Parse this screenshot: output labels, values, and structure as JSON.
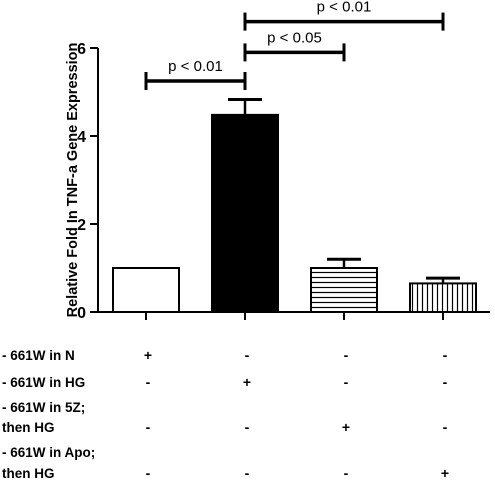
{
  "chart_data": {
    "type": "bar",
    "title": "",
    "xlabel": "",
    "ylabel": "Relative Fold In TNF-a Gene Expression",
    "ylim": [
      0,
      6
    ],
    "yticks": [
      0,
      2,
      4,
      6
    ],
    "categories": [
      "N",
      "HG",
      "5Z then HG",
      "Apo then HG"
    ],
    "values": [
      1.0,
      4.48,
      1.0,
      0.65
    ],
    "errors": [
      0,
      0.35,
      0.2,
      0.12
    ],
    "bar_styles": [
      "white",
      "black",
      "horizontal-hatch",
      "vertical-hatch"
    ],
    "significance": [
      {
        "from": 0,
        "to": 1,
        "label": "p < 0.01",
        "y": 5.25
      },
      {
        "from": 1,
        "to": 2,
        "label": "p < 0.05",
        "y": 5.9
      },
      {
        "from": 1,
        "to": 3,
        "label": "p < 0.01",
        "y": 6.6
      }
    ],
    "grid": false,
    "legend": "none"
  },
  "conditions": {
    "rows": [
      {
        "label_lines": [
          "- 661W in N"
        ],
        "signs": [
          "+",
          "-",
          "-",
          "-"
        ]
      },
      {
        "label_lines": [
          "- 661W in HG"
        ],
        "signs": [
          "-",
          "+",
          "-",
          "-"
        ]
      },
      {
        "label_lines": [
          "- 661W in 5Z;",
          "then HG"
        ],
        "signs": [
          "-",
          "-",
          "+",
          "-"
        ]
      },
      {
        "label_lines": [
          "- 661W in Apo;",
          "then HG"
        ],
        "signs": [
          "-",
          "-",
          "-",
          "+"
        ]
      }
    ]
  }
}
